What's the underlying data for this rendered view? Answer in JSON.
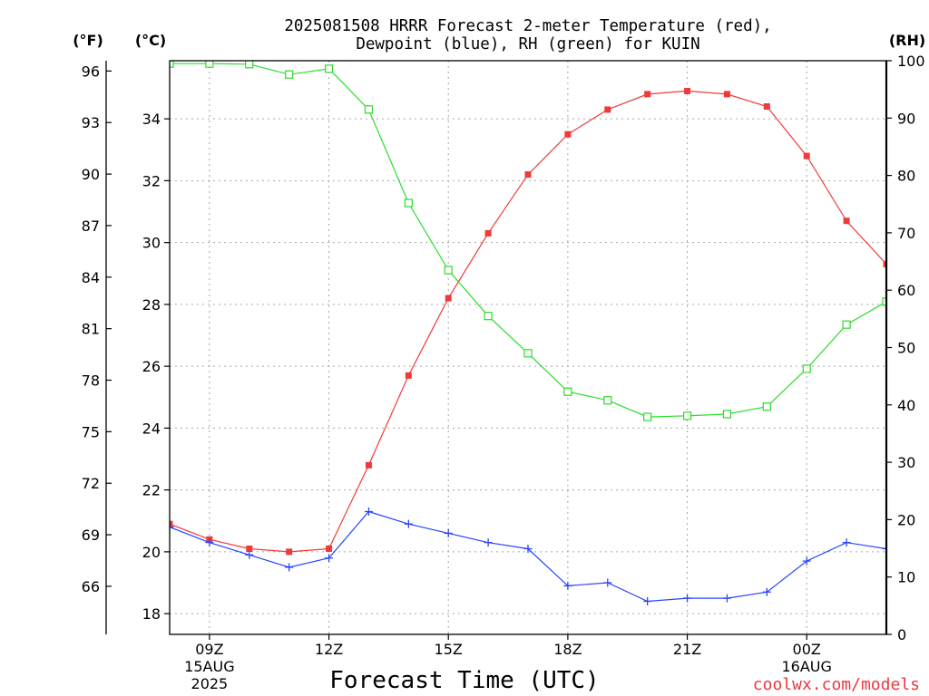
{
  "chart_data": {
    "type": "line",
    "title": {
      "prefix": "2025081508 HRRR Forecast",
      "line1_end": "(red),",
      "line2_mid": "(blue),",
      "line2_end": "(green) for KUIN"
    },
    "xlabel": "Forecast Time (UTC)",
    "x": [
      "08Z",
      "09Z",
      "10Z",
      "11Z",
      "12Z",
      "13Z",
      "14Z",
      "15Z",
      "16Z",
      "17Z",
      "18Z",
      "19Z",
      "20Z",
      "21Z",
      "22Z",
      "23Z",
      "00Z",
      "01Z",
      "02Z"
    ],
    "x_ticks": [
      {
        "at": "09Z",
        "lines": [
          "09Z",
          "15AUG",
          "2025"
        ]
      },
      {
        "at": "12Z",
        "lines": [
          "12Z"
        ]
      },
      {
        "at": "15Z",
        "lines": [
          "15Z"
        ]
      },
      {
        "at": "18Z",
        "lines": [
          "18Z"
        ]
      },
      {
        "at": "21Z",
        "lines": [
          "21Z"
        ]
      },
      {
        "at": "00Z",
        "lines": [
          "00Z",
          "16AUG"
        ]
      }
    ],
    "axes": {
      "y_left_f": {
        "label": "(°F)",
        "ticks": [
          96,
          93,
          90,
          87,
          84,
          81,
          78,
          75,
          72,
          69,
          66
        ],
        "range": [
          63.2,
          96.6
        ]
      },
      "y_left": {
        "label": "(°C)",
        "ticks": [
          34,
          32,
          30,
          28,
          26,
          24,
          22,
          20,
          18
        ],
        "range": [
          17.33,
          35.88
        ]
      },
      "y_right": {
        "label": "(RH)",
        "ticks": [
          100,
          90,
          80,
          70,
          60,
          50,
          40,
          30,
          20,
          10,
          0
        ],
        "range": [
          0,
          100
        ]
      }
    },
    "grid": true,
    "series": [
      {
        "name": "2-meter Temperature",
        "y_axis": "left",
        "color": "#f03a3a",
        "marker": "filled-square",
        "values": [
          20.9,
          20.4,
          20.1,
          20.0,
          20.1,
          22.8,
          25.7,
          28.2,
          30.3,
          32.2,
          33.5,
          34.3,
          34.8,
          34.9,
          34.8,
          34.4,
          32.8,
          30.7,
          29.3
        ]
      },
      {
        "name": "Dewpoint",
        "y_axis": "left",
        "color": "#2a44ff",
        "marker": "plus",
        "values": [
          20.8,
          20.3,
          19.9,
          19.5,
          19.8,
          21.3,
          20.9,
          20.6,
          20.3,
          20.1,
          18.9,
          19.0,
          18.4,
          18.5,
          18.5,
          18.7,
          19.7,
          20.3,
          20.1
        ]
      },
      {
        "name": "RH",
        "y_axis": "right",
        "color": "#2bdc2b",
        "marker": "open-square",
        "values": [
          99.5,
          99.5,
          99.4,
          97.6,
          98.6,
          91.5,
          75.2,
          63.5,
          55.5,
          49.0,
          42.3,
          40.8,
          37.9,
          38.1,
          38.4,
          39.7,
          46.3,
          54.0,
          58.0
        ]
      }
    ]
  },
  "credit": {
    "text": "coolwx.com/models",
    "color": "#e8383d"
  }
}
